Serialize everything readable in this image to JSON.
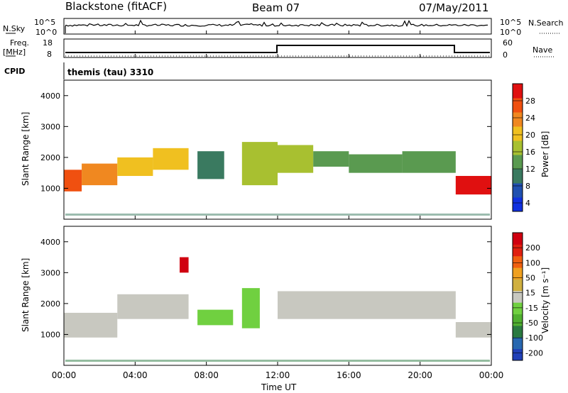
{
  "header": {
    "station": "Blackstone (fitACF)",
    "beam": "Beam 07",
    "date": "07/May/2011"
  },
  "panels": {
    "nsky": {
      "label": "N.Sky",
      "ticks": [
        "10^5",
        "10^0"
      ]
    },
    "nsearch": {
      "label": "N.Search",
      "ticks": [
        "10^5",
        "10^0"
      ]
    },
    "freq": {
      "label_line1": "Freq.",
      "label_line2": "[MHz]",
      "ticks": [
        "18",
        "8"
      ]
    },
    "nave": {
      "label": "Nave",
      "ticks": [
        "60",
        "0"
      ]
    },
    "cpid": {
      "label": "CPID",
      "value": "themis (tau) 3310"
    }
  },
  "colors": {
    "power_scale": [
      "#1030e0",
      "#2050b0",
      "#3a7a60",
      "#5a9a50",
      "#a8c030",
      "#f0c020",
      "#f08820",
      "#f05010",
      "#e01010"
    ],
    "velocity_scale": [
      "#2040b8",
      "#2868b0",
      "#2a7a40",
      "#50b030",
      "#70d040",
      "#c8c8c0",
      "#d0b040",
      "#f0a020",
      "#f06010",
      "#e02010",
      "#d00010"
    ],
    "sky_trace": "#000000"
  },
  "chart_data": [
    {
      "type": "heatmap",
      "name": "power",
      "ylabel": "Slant Range [km]",
      "ylim": [
        0,
        4500
      ],
      "yticks": [
        "4000",
        "3000",
        "2000",
        "1000"
      ],
      "xlim_hours": [
        0,
        24
      ],
      "colorbar_label": "Power [dB]",
      "colorbar_ticks": [
        "28",
        "24",
        "20",
        "16",
        "12",
        "8",
        "4"
      ],
      "bands": [
        {
          "t": [
            0.0,
            1.0
          ],
          "r": [
            900,
            1600
          ],
          "level": 7
        },
        {
          "t": [
            1.0,
            3.0
          ],
          "r": [
            1100,
            1800
          ],
          "level": 6
        },
        {
          "t": [
            3.0,
            5.0
          ],
          "r": [
            1400,
            2000
          ],
          "level": 5
        },
        {
          "t": [
            5.0,
            7.0
          ],
          "r": [
            1600,
            2300
          ],
          "level": 5
        },
        {
          "t": [
            7.5,
            9.0
          ],
          "r": [
            1300,
            2200
          ],
          "level": 2
        },
        {
          "t": [
            10.0,
            12.0
          ],
          "r": [
            1100,
            2500
          ],
          "level": 4
        },
        {
          "t": [
            12.0,
            14.0
          ],
          "r": [
            1500,
            2400
          ],
          "level": 4
        },
        {
          "t": [
            14.0,
            16.0
          ],
          "r": [
            1700,
            2200
          ],
          "level": 3
        },
        {
          "t": [
            16.0,
            19.0
          ],
          "r": [
            1500,
            2100
          ],
          "level": 3
        },
        {
          "t": [
            19.0,
            22.0
          ],
          "r": [
            1500,
            2200
          ],
          "level": 3
        },
        {
          "t": [
            22.0,
            24.0
          ],
          "r": [
            800,
            1400
          ],
          "level": 8
        }
      ]
    },
    {
      "type": "heatmap",
      "name": "velocity",
      "ylabel": "Slant Range [km]",
      "ylim": [
        0,
        4500
      ],
      "yticks": [
        "4000",
        "3000",
        "2000",
        "1000"
      ],
      "xlim_hours": [
        0,
        24
      ],
      "xticks": [
        "00:00",
        "04:00",
        "08:00",
        "12:00",
        "16:00",
        "20:00",
        "00:00"
      ],
      "xlabel": "Time UT",
      "colorbar_label": "Velocity [m s⁻¹]",
      "colorbar_ticks": [
        "200",
        "100",
        "50",
        "15",
        "-15",
        "-50",
        "-100",
        "-200"
      ],
      "bands": [
        {
          "t": [
            0.0,
            3.0
          ],
          "r": [
            900,
            1700
          ],
          "level": 5
        },
        {
          "t": [
            3.0,
            7.0
          ],
          "r": [
            1500,
            2300
          ],
          "level": 5
        },
        {
          "t": [
            7.5,
            9.5
          ],
          "r": [
            1300,
            1800
          ],
          "level": 4
        },
        {
          "t": [
            6.5,
            7.0
          ],
          "r": [
            3000,
            3500
          ],
          "level": 10
        },
        {
          "t": [
            10.0,
            11.0
          ],
          "r": [
            1200,
            2500
          ],
          "level": 4
        },
        {
          "t": [
            12.0,
            22.0
          ],
          "r": [
            1500,
            2400
          ],
          "level": 5
        },
        {
          "t": [
            22.0,
            24.0
          ],
          "r": [
            900,
            1400
          ],
          "level": 5
        }
      ]
    }
  ]
}
